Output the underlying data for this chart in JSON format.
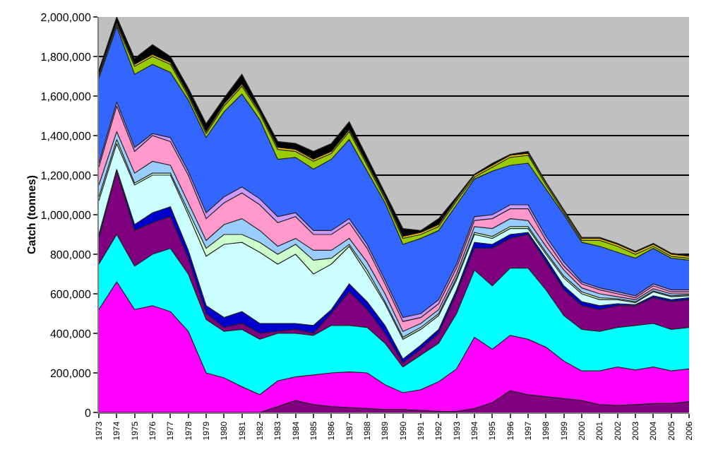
{
  "chart_data": {
    "type": "area",
    "stacked": true,
    "ylabel": "Catch (tonnes)",
    "categories": [
      "1973",
      "1974",
      "1975",
      "1976",
      "1977",
      "1978",
      "1979",
      "1980",
      "1981",
      "1982",
      "1983",
      "1984",
      "1985",
      "1986",
      "1987",
      "1988",
      "1989",
      "1990",
      "1991",
      "1992",
      "1993",
      "1994",
      "1995",
      "1996",
      "1997",
      "1998",
      "1999",
      "2000",
      "2001",
      "2002",
      "2003",
      "2004",
      "2005",
      "2006"
    ],
    "ylim": [
      0,
      2000000
    ],
    "yticks": [
      0,
      {
        "value": 200000,
        "label": "200,000"
      },
      {
        "value": 400000,
        "label": "400,000"
      },
      {
        "value": 600000,
        "label": "600,000"
      },
      {
        "value": 800000,
        "label": "800,000"
      },
      {
        "value": 1000000,
        "label": "1,000,000"
      },
      {
        "value": 1200000,
        "label": "1,200,000"
      },
      {
        "value": 1400000,
        "label": "1,400,000"
      },
      {
        "value": 1600000,
        "label": "1,600,000"
      },
      {
        "value": 1800000,
        "label": "1,800,000"
      },
      {
        "value": 2000000,
        "label": "2,000,000"
      }
    ],
    "grid": "y",
    "marker": "none",
    "series": [
      {
        "color": "#800080",
        "values": [
          0,
          0,
          0,
          0,
          0,
          0,
          0,
          0,
          0,
          0,
          30000,
          60000,
          40000,
          30000,
          25000,
          20000,
          15000,
          15000,
          10000,
          5000,
          5000,
          20000,
          50000,
          110000,
          90000,
          80000,
          70000,
          60000,
          40000,
          35000,
          40000,
          45000,
          45000,
          55000
        ]
      },
      {
        "color": "#ff00ff",
        "values": [
          520000,
          660000,
          520000,
          540000,
          510000,
          410000,
          200000,
          175000,
          130000,
          90000,
          130000,
          120000,
          150000,
          170000,
          180000,
          180000,
          125000,
          85000,
          105000,
          150000,
          215000,
          360000,
          270000,
          280000,
          280000,
          250000,
          190000,
          150000,
          170000,
          195000,
          175000,
          185000,
          165000,
          165000
        ]
      },
      {
        "color": "#00ffff",
        "values": [
          230000,
          240000,
          220000,
          260000,
          320000,
          290000,
          270000,
          235000,
          290000,
          280000,
          240000,
          220000,
          200000,
          240000,
          235000,
          230000,
          210000,
          130000,
          175000,
          195000,
          280000,
          340000,
          320000,
          340000,
          360000,
          290000,
          230000,
          210000,
          200000,
          200000,
          225000,
          220000,
          210000,
          210000
        ]
      },
      {
        "color": "#800080",
        "values": [
          130000,
          320000,
          180000,
          160000,
          160000,
          80000,
          30000,
          20000,
          30000,
          30000,
          10000,
          20000,
          10000,
          60000,
          170000,
          90000,
          50000,
          20000,
          30000,
          50000,
          100000,
          110000,
          190000,
          150000,
          170000,
          140000,
          130000,
          120000,
          110000,
          110000,
          100000,
          130000,
          140000,
          140000
        ]
      },
      {
        "color": "#0000cc",
        "values": [
          20000,
          10000,
          30000,
          50000,
          50000,
          40000,
          40000,
          50000,
          60000,
          50000,
          40000,
          30000,
          40000,
          20000,
          40000,
          40000,
          40000,
          20000,
          20000,
          20000,
          20000,
          30000,
          20000,
          20000,
          10000,
          20000,
          20000,
          20000,
          20000,
          10000,
          5000,
          10000,
          10000,
          10000
        ]
      },
      {
        "color": "#ccffff",
        "values": [
          170000,
          130000,
          200000,
          190000,
          160000,
          180000,
          250000,
          370000,
          350000,
          360000,
          300000,
          350000,
          260000,
          230000,
          190000,
          140000,
          110000,
          100000,
          80000,
          70000,
          50000,
          40000,
          30000,
          30000,
          20000,
          20000,
          40000,
          40000,
          30000,
          20000,
          10000,
          20000,
          15000,
          10000
        ]
      },
      {
        "color": "#ccffcc",
        "values": [
          20000,
          20000,
          10000,
          10000,
          10000,
          20000,
          40000,
          50000,
          40000,
          50000,
          50000,
          50000,
          70000,
          30000,
          10000,
          20000,
          10000,
          10000,
          10000,
          10000,
          10000,
          10000,
          10000,
          10000,
          10000,
          10000,
          10000,
          10000,
          10000,
          5000,
          5000,
          5000,
          5000,
          5000
        ]
      },
      {
        "color": "#99ccff",
        "values": [
          60000,
          40000,
          50000,
          60000,
          40000,
          40000,
          40000,
          50000,
          80000,
          60000,
          40000,
          30000,
          50000,
          40000,
          30000,
          40000,
          40000,
          30000,
          20000,
          20000,
          20000,
          30000,
          40000,
          40000,
          30000,
          30000,
          30000,
          20000,
          20000,
          10000,
          10000,
          10000,
          10000,
          5000
        ]
      },
      {
        "color": "#ff99cc",
        "values": [
          90000,
          130000,
          110000,
          130000,
          120000,
          140000,
          110000,
          110000,
          130000,
          130000,
          120000,
          110000,
          80000,
          80000,
          80000,
          70000,
          50000,
          50000,
          30000,
          30000,
          30000,
          30000,
          50000,
          50000,
          60000,
          30000,
          20000,
          20000,
          20000,
          15000,
          10000,
          15000,
          10000,
          10000
        ]
      },
      {
        "color": "#cc99ff",
        "values": [
          20000,
          20000,
          20000,
          10000,
          20000,
          20000,
          30000,
          30000,
          30000,
          30000,
          30000,
          20000,
          20000,
          20000,
          20000,
          20000,
          20000,
          20000,
          20000,
          20000,
          20000,
          20000,
          20000,
          20000,
          20000,
          20000,
          20000,
          10000,
          10000,
          10000,
          10000,
          10000,
          10000,
          10000
        ]
      },
      {
        "color": "#3366ff",
        "values": [
          430000,
          380000,
          370000,
          350000,
          330000,
          360000,
          380000,
          430000,
          470000,
          400000,
          290000,
          280000,
          310000,
          360000,
          400000,
          370000,
          390000,
          370000,
          380000,
          350000,
          300000,
          190000,
          220000,
          200000,
          210000,
          240000,
          240000,
          200000,
          210000,
          200000,
          190000,
          180000,
          160000,
          150000
        ]
      },
      {
        "color": "#99cc00",
        "values": [
          10000,
          10000,
          40000,
          40000,
          40000,
          20000,
          20000,
          30000,
          40000,
          30000,
          50000,
          30000,
          40000,
          30000,
          40000,
          30000,
          20000,
          30000,
          20000,
          20000,
          20000,
          10000,
          20000,
          40000,
          40000,
          20000,
          10000,
          10000,
          30000,
          30000,
          20000,
          10000,
          10000,
          10000
        ]
      },
      {
        "color": "#ffcc00",
        "values": [
          10000,
          10000,
          10000,
          10000,
          10000,
          10000,
          10000,
          10000,
          10000,
          10000,
          10000,
          10000,
          10000,
          10000,
          10000,
          10000,
          10000,
          10000,
          10000,
          10000,
          10000,
          10000,
          10000,
          10000,
          10000,
          10000,
          10000,
          10000,
          10000,
          10000,
          10000,
          10000,
          10000,
          10000
        ]
      },
      {
        "color": "#000000",
        "values": [
          20000,
          30000,
          30000,
          50000,
          30000,
          30000,
          40000,
          30000,
          50000,
          20000,
          30000,
          30000,
          40000,
          40000,
          40000,
          30000,
          20000,
          40000,
          10000,
          30000,
          10000,
          5000,
          10000,
          5000,
          10000,
          5000,
          5000,
          5000,
          5000,
          5000,
          5000,
          5000,
          5000,
          5000
        ]
      }
    ]
  }
}
